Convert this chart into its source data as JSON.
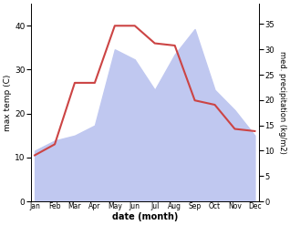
{
  "months": [
    "Jan",
    "Feb",
    "Mar",
    "Apr",
    "May",
    "Jun",
    "Jul",
    "Aug",
    "Sep",
    "Oct",
    "Nov",
    "Dec"
  ],
  "max_temp": [
    10.5,
    13,
    27,
    27,
    40,
    40,
    36,
    35.5,
    23,
    22,
    16.5,
    16
  ],
  "precipitation": [
    10,
    12,
    13,
    15,
    30,
    28,
    22,
    29,
    34,
    22,
    18,
    13
  ],
  "temp_color": "#cc4444",
  "precip_fill_color": "#c0c8f0",
  "temp_ylim": [
    0,
    45
  ],
  "temp_yticks": [
    0,
    10,
    20,
    30,
    40
  ],
  "precip_ylim": [
    0,
    39
  ],
  "precip_yticks": [
    0,
    5,
    10,
    15,
    20,
    25,
    30,
    35
  ],
  "xlabel": "date (month)",
  "ylabel_left": "max temp (C)",
  "ylabel_right": "med. precipitation (kg/m2)",
  "fig_width": 3.18,
  "fig_height": 2.47,
  "dpi": 100
}
